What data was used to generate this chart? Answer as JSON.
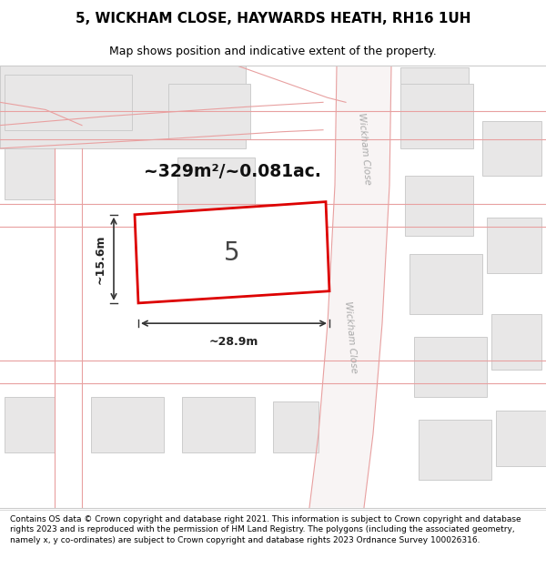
{
  "title": "5, WICKHAM CLOSE, HAYWARDS HEATH, RH16 1UH",
  "subtitle": "Map shows position and indicative extent of the property.",
  "footer": "Contains OS data © Crown copyright and database right 2021. This information is subject to Crown copyright and database rights 2023 and is reproduced with the permission of HM Land Registry. The polygons (including the associated geometry, namely x, y co-ordinates) are subject to Crown copyright and database rights 2023 Ordnance Survey 100026316.",
  "area_text": "~329m²/~0.081ac.",
  "plot_number": "5",
  "dim_width": "~28.9m",
  "dim_height": "~15.6m",
  "map_bg": "#f7f6f6",
  "plot_fill": "#ffffff",
  "plot_edge": "#dd0000",
  "road_color": "#f5c8c8",
  "road_label": "Wickham Close",
  "building_fill": "#e8e7e7",
  "building_edge": "#cccccc",
  "road_line_color": "#e8a0a0",
  "title_fontsize": 11,
  "subtitle_fontsize": 9,
  "footer_fontsize": 6.5
}
